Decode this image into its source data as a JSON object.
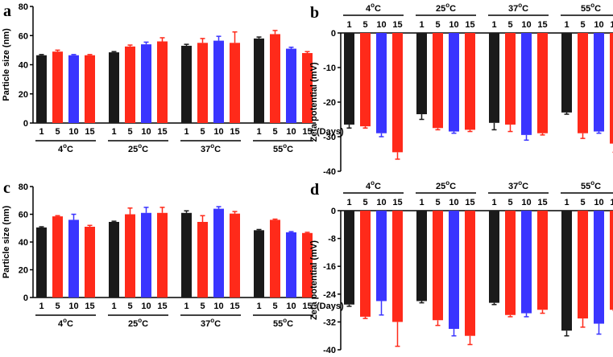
{
  "chart_data": [
    {
      "panel": "a",
      "type": "bar",
      "ylabel": "Particle size (nm)",
      "ylim": [
        0,
        80
      ],
      "yticks": [
        "0",
        "20",
        "40",
        "60",
        "80"
      ],
      "day_labels": [
        "1",
        "5",
        "10",
        "15"
      ],
      "unit_label": "(Days)",
      "groups": [
        "4ºC",
        "25ºC",
        "37ºC",
        "55ºC"
      ],
      "values": [
        46.5,
        49,
        46.5,
        46.5,
        48.5,
        52.5,
        54,
        56,
        53,
        55,
        56.5,
        55,
        58,
        61,
        51,
        48
      ],
      "errors": [
        0.5,
        1,
        0.5,
        0.5,
        0.5,
        1,
        1.5,
        2.5,
        1,
        3,
        3,
        7.5,
        1,
        2.5,
        1,
        1
      ]
    },
    {
      "panel": "b",
      "type": "bar",
      "ylabel": "Zeta potential (mV)",
      "ylim": [
        -40,
        0
      ],
      "yticks": [
        "-40",
        "-30",
        "-20",
        "-10",
        "0"
      ],
      "day_labels": [
        "1",
        "5",
        "10",
        "15"
      ],
      "unit_label": "(Days)",
      "groups": [
        "4ºC",
        "25ºC",
        "37ºC",
        "55ºC"
      ],
      "values": [
        -26.5,
        -27,
        -29,
        -34.5,
        -23.5,
        -27.5,
        -28.5,
        -28,
        -26,
        -26.5,
        -29.5,
        -29,
        -23,
        -29,
        -28.5,
        -32
      ],
      "errors": [
        1,
        0.5,
        1,
        2,
        1.5,
        0.5,
        0.5,
        0.5,
        2,
        2,
        1.5,
        0.5,
        0.5,
        1.5,
        0.5,
        2.5
      ]
    },
    {
      "panel": "c",
      "type": "bar",
      "ylabel": "Particle size (nm)",
      "ylim": [
        0,
        80
      ],
      "yticks": [
        "0",
        "20",
        "40",
        "60",
        "80"
      ],
      "day_labels": [
        "1",
        "5",
        "10",
        "15"
      ],
      "unit_label": "(Days)",
      "groups": [
        "4ºC",
        "25ºC",
        "37ºC",
        "55ºC"
      ],
      "values": [
        50.5,
        58.5,
        56,
        51,
        54.5,
        60,
        61,
        61,
        61,
        54.5,
        64,
        60.5,
        48.5,
        56,
        47,
        46.5
      ],
      "errors": [
        0.5,
        0.5,
        4,
        1,
        0.5,
        4.5,
        4,
        4,
        1.5,
        4.5,
        1.5,
        1.5,
        0.5,
        0.5,
        0.5,
        0.5
      ]
    },
    {
      "panel": "d",
      "type": "bar",
      "ylabel": "Zeta potential (mV)",
      "ylim": [
        -40,
        0
      ],
      "yticks": [
        "-40",
        "-32",
        "-24",
        "-16",
        "-8",
        "0"
      ],
      "day_labels": [
        "1",
        "5",
        "10",
        "15"
      ],
      "unit_label": "(Days)",
      "groups": [
        "4ºC",
        "25ºC",
        "37ºC",
        "55ºC"
      ],
      "values": [
        -27,
        -30.5,
        -26,
        -32,
        -26,
        -31.5,
        -34,
        -36,
        -26.5,
        -30,
        -29.5,
        -28.5,
        -34.5,
        -31,
        -32.5,
        -28.5
      ],
      "errors": [
        0.5,
        0.5,
        4,
        7,
        0.5,
        1.5,
        2,
        2.5,
        0.5,
        0.5,
        1,
        1,
        1.5,
        2.5,
        3,
        0.2
      ]
    }
  ],
  "colors": {
    "bars": [
      "#1a1a1a",
      "#ff2a1a",
      "#3a35ff",
      "#ff2a1a"
    ]
  }
}
